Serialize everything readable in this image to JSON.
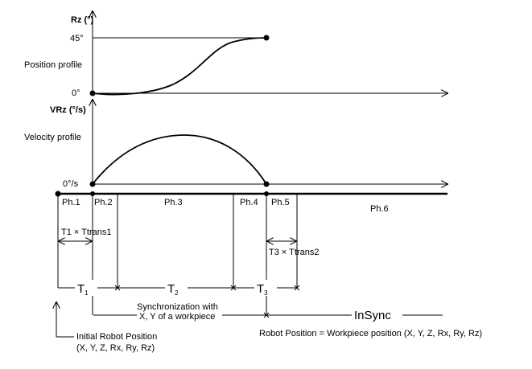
{
  "axes": {
    "rz_label": "Rz (°)",
    "rz_top_tick": "45°",
    "rz_zero_tick": "0°",
    "vrz_label": "VRz (°/s)",
    "vrz_zero_tick": "0°/s"
  },
  "profiles": {
    "position": "Position profile",
    "velocity": "Velocity profile"
  },
  "phases": [
    "Ph.1",
    "Ph.2",
    "Ph.3",
    "Ph.4",
    "Ph.5",
    "Ph.6"
  ],
  "transitions": {
    "t1": "T1 × Ttrans1",
    "t3": "T3 × Ttrans2"
  },
  "intervals": {
    "letter": "T",
    "t1_sub": "1",
    "t2_sub": "2",
    "t3_sub": "3"
  },
  "sync": {
    "line1": "Synchronization with",
    "line2": "X, Y of a workpiece",
    "insync": "InSync",
    "robot_position": "Robot Position = Workpiece position (X, Y, Z, Rx, Ry, Rz)"
  },
  "initial": {
    "line1": "Initial Robot Position",
    "line2": "(X, Y, Z, Rx, Ry, Rz)"
  }
}
